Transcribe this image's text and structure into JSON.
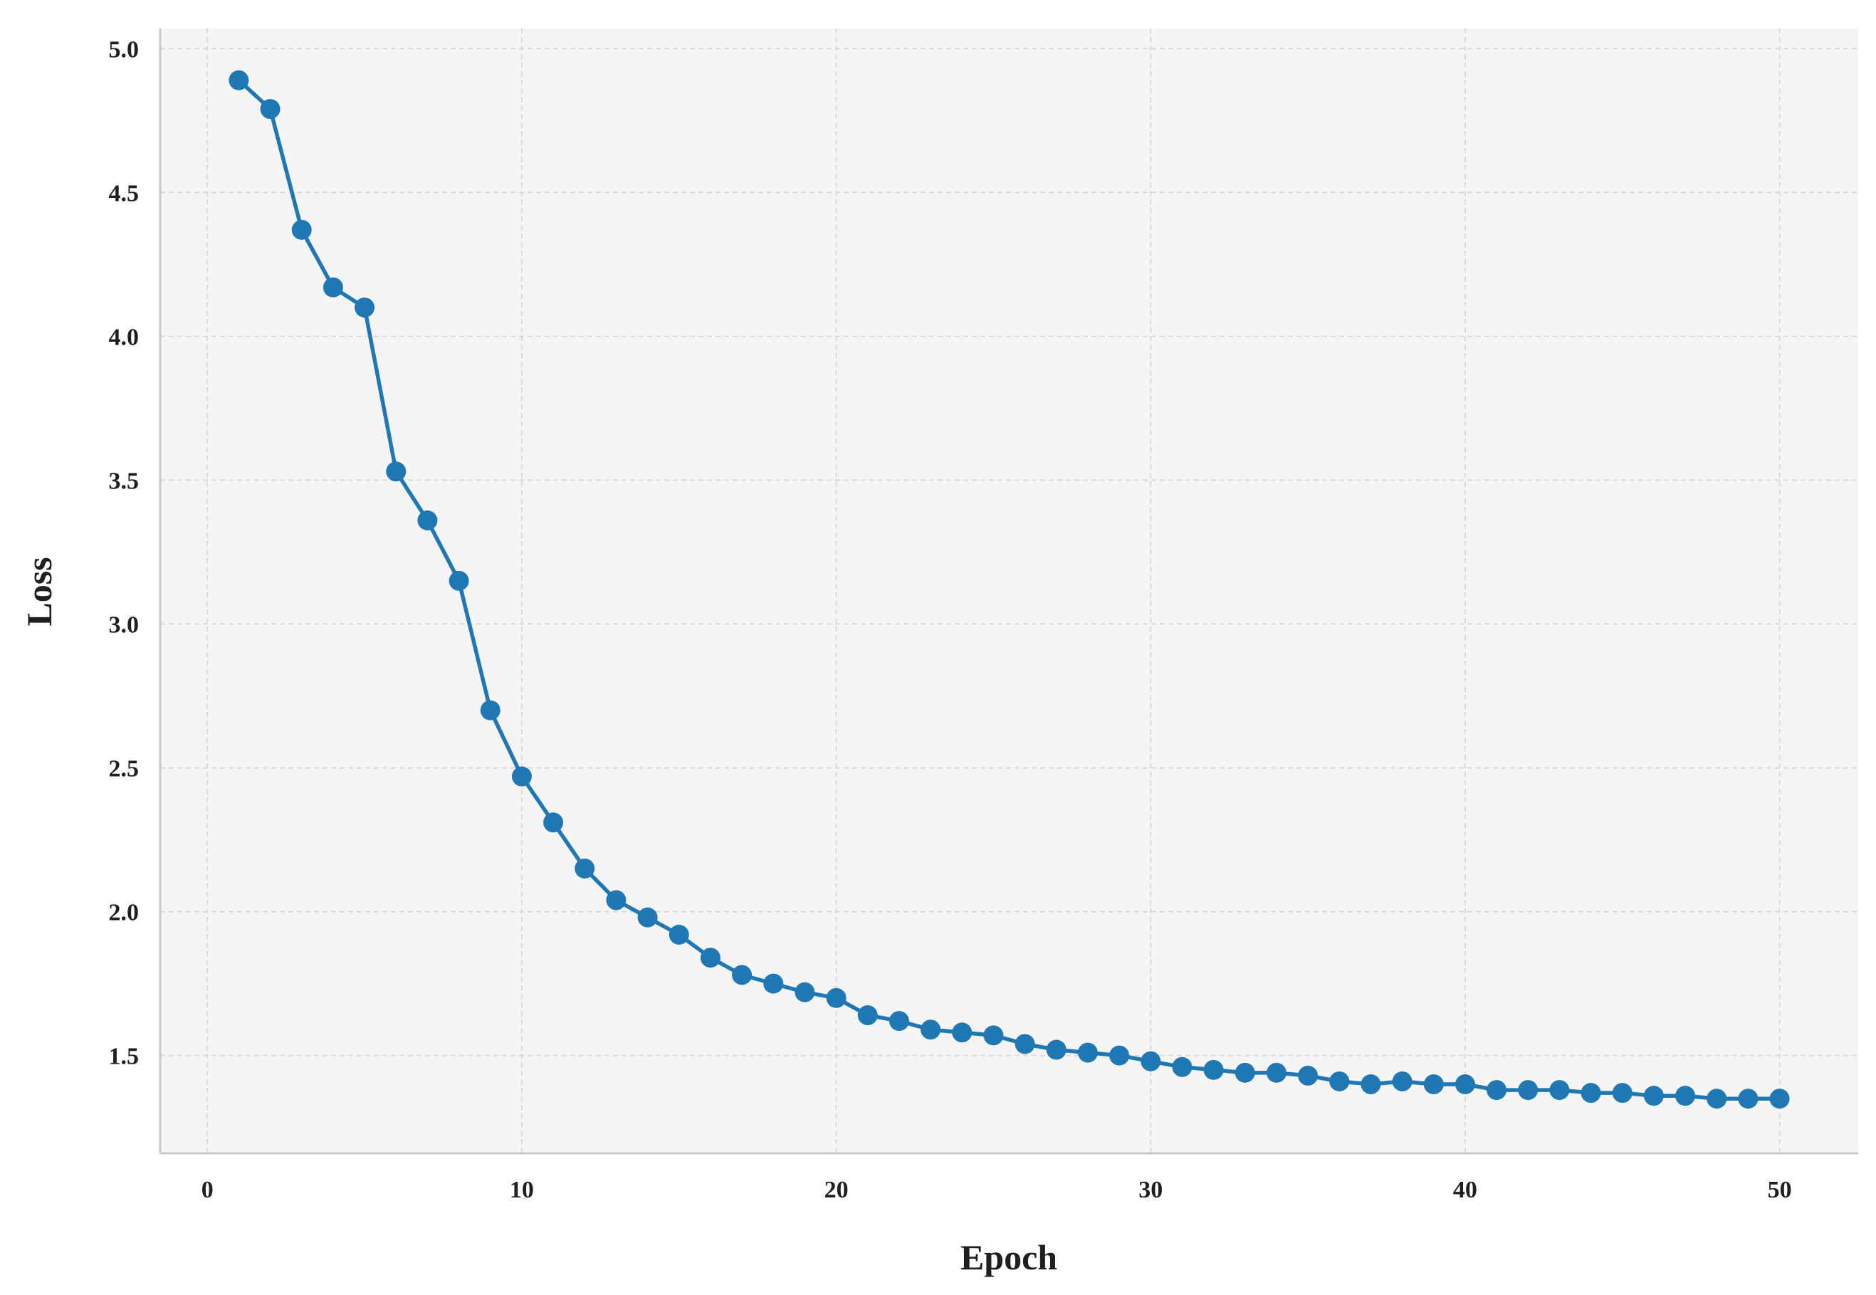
{
  "chart_data": {
    "type": "line",
    "title": "",
    "xlabel": "Epoch",
    "ylabel": "Loss",
    "xlim": [
      -1.5,
      52.5
    ],
    "ylim": [
      1.16,
      5.07
    ],
    "xticks": [
      0,
      10,
      20,
      30,
      40,
      50
    ],
    "xtick_labels": [
      "0",
      "10",
      "20",
      "30",
      "40",
      "50"
    ],
    "yticks": [
      1.5,
      2.0,
      2.5,
      3.0,
      3.5,
      4.0,
      4.5,
      5.0
    ],
    "ytick_labels": [
      "1.5",
      "2.0",
      "2.5",
      "3.0",
      "3.5",
      "4.0",
      "4.5",
      "5.0"
    ],
    "grid": true,
    "legend": "none",
    "colors": {
      "line": "#1f77b4",
      "plot_background": "#f5f5f5",
      "grid": "#d4d4d4",
      "axis": "#c8c8c8"
    },
    "x": [
      1,
      2,
      3,
      4,
      5,
      6,
      7,
      8,
      9,
      10,
      11,
      12,
      13,
      14,
      15,
      16,
      17,
      18,
      19,
      20,
      21,
      22,
      23,
      24,
      25,
      26,
      27,
      28,
      29,
      30,
      31,
      32,
      33,
      34,
      35,
      36,
      37,
      38,
      39,
      40,
      41,
      42,
      43,
      44,
      45,
      46,
      47,
      48,
      49,
      50
    ],
    "series": [
      {
        "values": [
          4.89,
          4.79,
          4.37,
          4.17,
          4.1,
          3.53,
          3.36,
          3.15,
          2.7,
          2.47,
          2.31,
          2.15,
          2.04,
          1.98,
          1.92,
          1.84,
          1.78,
          1.75,
          1.72,
          1.7,
          1.64,
          1.62,
          1.59,
          1.58,
          1.57,
          1.54,
          1.52,
          1.51,
          1.5,
          1.48,
          1.46,
          1.45,
          1.44,
          1.44,
          1.43,
          1.41,
          1.4,
          1.41,
          1.4,
          1.4,
          1.38,
          1.38,
          1.38,
          1.37,
          1.37,
          1.36,
          1.36,
          1.35,
          1.35,
          1.35
        ]
      }
    ]
  }
}
